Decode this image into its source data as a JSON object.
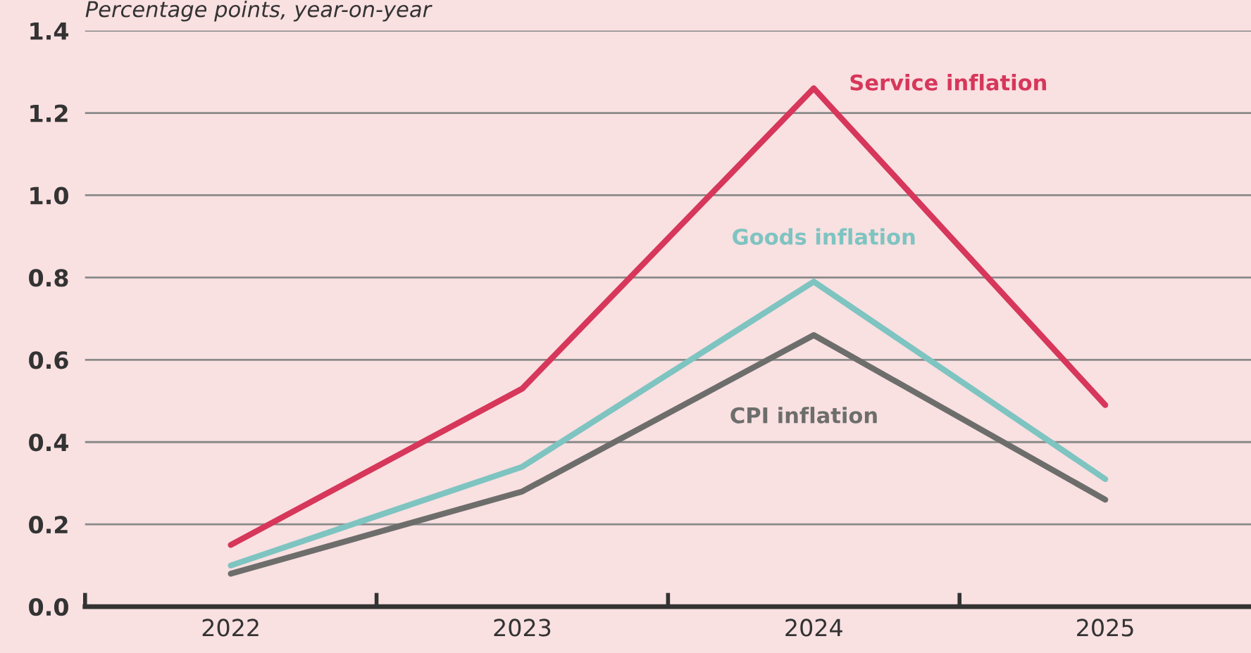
{
  "chart_data": {
    "type": "line",
    "subtitle": "Percentage points, year-on-year",
    "categories": [
      "2022",
      "2023",
      "2024",
      "2025"
    ],
    "series": [
      {
        "name": "Service inflation",
        "color": "#d6375a",
        "values": [
          0.15,
          0.53,
          1.26,
          0.49
        ]
      },
      {
        "name": "Goods inflation",
        "color": "#7ec4c1",
        "values": [
          0.1,
          0.34,
          0.79,
          0.31
        ]
      },
      {
        "name": "CPI inflation",
        "color": "#6d6e6c",
        "values": [
          0.08,
          0.28,
          0.66,
          0.26
        ]
      }
    ],
    "ylim": [
      0,
      1.4
    ],
    "yticks": [
      {
        "value": 0,
        "label": "0.0"
      },
      0.2,
      0.4,
      0.6,
      0.8,
      {
        "value": 1,
        "label": "1.0"
      },
      1.2,
      1.4
    ],
    "grid": "y",
    "legend": false,
    "marker": "none",
    "line_style": "solid"
  }
}
